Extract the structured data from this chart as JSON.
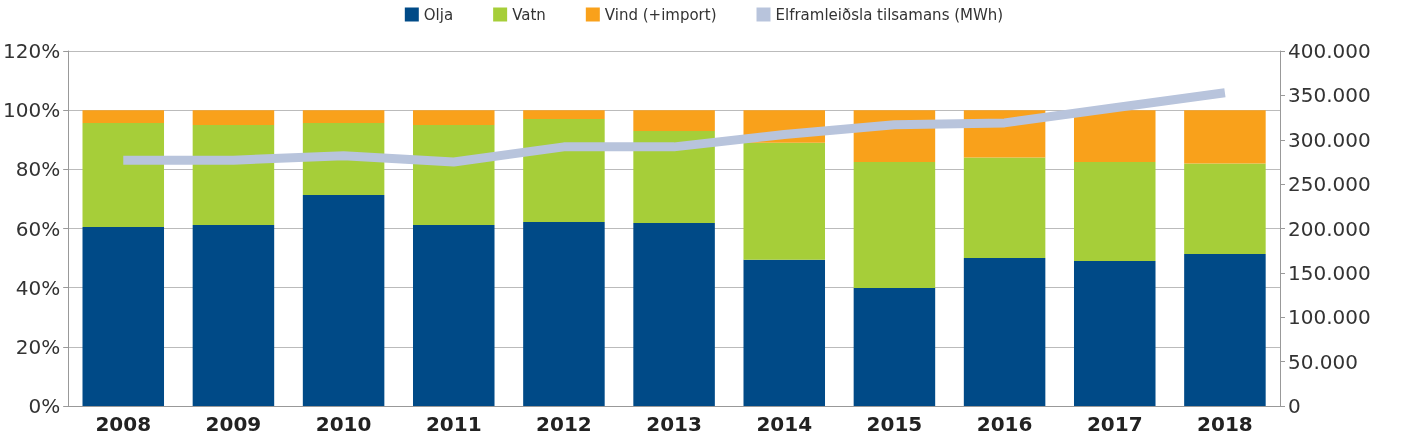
{
  "chart_data": {
    "type": "bar",
    "stacked": true,
    "categories": [
      "2008",
      "2009",
      "2010",
      "2011",
      "2012",
      "2013",
      "2014",
      "2015",
      "2016",
      "2017",
      "2018"
    ],
    "series": [
      {
        "name": "Olja",
        "color": "#004a87",
        "values": [
          60.5,
          61.2,
          71.3,
          61.2,
          62.2,
          61.9,
          49.4,
          39.9,
          50,
          49,
          51.4
        ]
      },
      {
        "name": "Vatn",
        "color": "#a6ce39",
        "values": [
          35.2,
          33.8,
          24.4,
          33.8,
          34.8,
          31.1,
          39.6,
          42.6,
          34,
          33.5,
          30.6
        ]
      },
      {
        "name": "Vind (+import)",
        "color": "#f9a11b",
        "values": [
          4.3,
          5,
          4.3,
          5,
          3,
          7,
          11,
          17.5,
          16,
          17.5,
          18
        ]
      },
      {
        "name": "Elframleiðsla tilsamans (MWh)",
        "type": "line",
        "axis": "y2",
        "color": "#b8c4dc",
        "values": [
          277000,
          277000,
          282000,
          275000,
          292000,
          292000,
          306000,
          317000,
          319000,
          336000,
          353000
        ]
      }
    ],
    "ylim": [
      0,
      120
    ],
    "yticks": [
      {
        "value": 0,
        "label": "0%"
      },
      {
        "value": 20,
        "label": "20%"
      },
      {
        "value": 40,
        "label": "40%"
      },
      {
        "value": 60,
        "label": "60%"
      },
      {
        "value": 80,
        "label": "80%"
      },
      {
        "value": 100,
        "label": "100%"
      },
      {
        "value": 120,
        "label": "120%"
      }
    ],
    "y2lim": [
      0,
      400000
    ],
    "y2ticks": [
      {
        "value": 0,
        "label": "0"
      },
      {
        "value": 50000,
        "label": "50.000"
      },
      {
        "value": 100000,
        "label": "100.000"
      },
      {
        "value": 150000,
        "label": "150.000"
      },
      {
        "value": 200000,
        "label": "200.000"
      },
      {
        "value": 250000,
        "label": "250.000"
      },
      {
        "value": 300000,
        "label": "300.000"
      },
      {
        "value": 350000,
        "label": "350.000"
      },
      {
        "value": 400000,
        "label": "400.000"
      }
    ],
    "grid": "y",
    "legend": "top",
    "marker": "none"
  }
}
